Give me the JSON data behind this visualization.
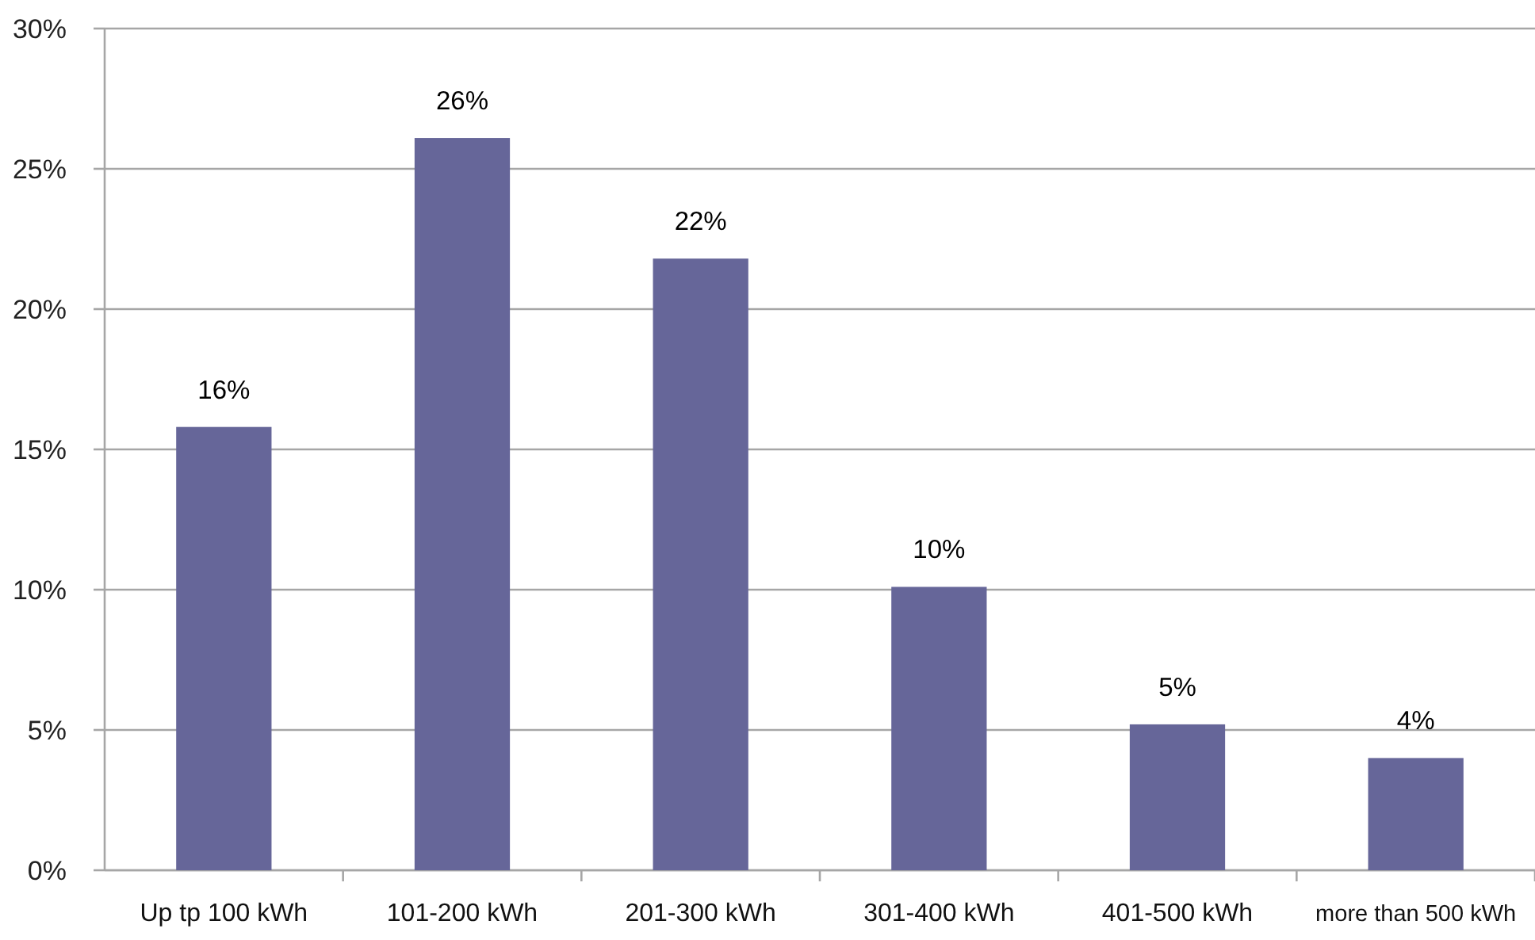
{
  "chart_data": {
    "type": "bar",
    "categories": [
      "Up tp 100 kWh",
      "101-200 kWh",
      "201-300 kWh",
      "301-400 kWh",
      "401-500 kWh",
      "more than 500 kWh"
    ],
    "values": [
      15.8,
      26.1,
      21.8,
      10.1,
      5.2,
      4
    ],
    "value_labels": [
      "16%",
      "26%",
      "22%",
      "10%",
      "5%",
      "4%"
    ],
    "color": "#666699",
    "ylim": [
      0,
      30
    ],
    "yticks": [
      {
        "value": 0,
        "label": "0%"
      },
      {
        "value": 5,
        "label": "5%"
      },
      {
        "value": 10,
        "label": "10%"
      },
      {
        "value": 15,
        "label": "15%"
      },
      {
        "value": 20,
        "label": "20%"
      },
      {
        "value": 25,
        "label": "25%"
      },
      {
        "value": 30,
        "label": "30%"
      }
    ],
    "grid": "y"
  }
}
